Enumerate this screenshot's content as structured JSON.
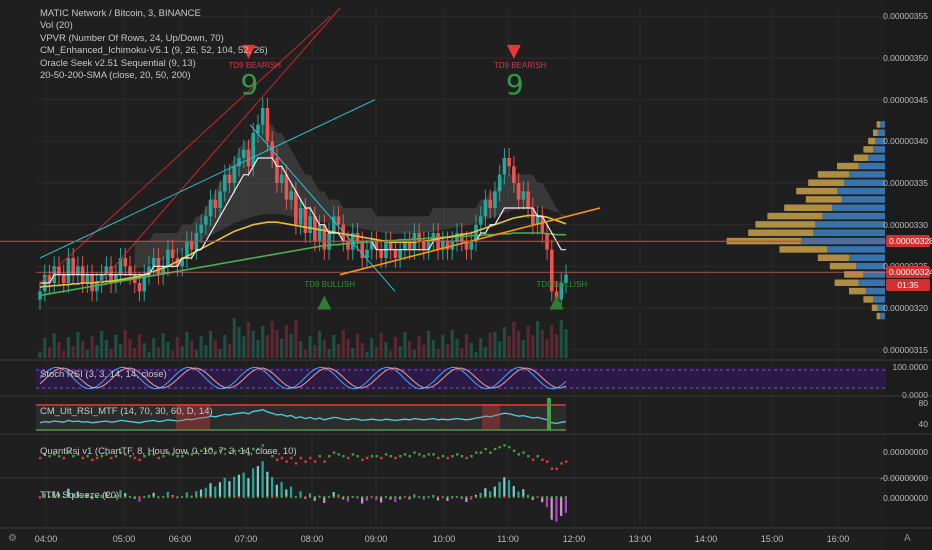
{
  "chart_data": {
    "type": "candlestick",
    "title": "MATIC Network / Bitcoin, 3, BINANCE",
    "indicators": [
      "Vol (20)",
      "VPVR (Number Of Rows, 24, Up/Down, 70)",
      "CM_Enhanced_Ichimoku-V5.1 (9, 26, 52, 104, 52, 26)",
      "Oracle Seek v2.51 Sequential (9, 13)",
      "20-50-200-SMA (close, 20, 50, 200)"
    ],
    "y_ticks": [
      "0.00000355",
      "0.00000350",
      "0.00000345",
      "0.00000340",
      "0.00000335",
      "0.00000330",
      "0.00000325",
      "0.00000320",
      "0.00000315"
    ],
    "y_tick_values": [
      3.55e-06,
      3.5e-06,
      3.45e-06,
      3.4e-06,
      3.35e-06,
      3.3e-06,
      3.25e-06,
      3.2e-06,
      3.15e-06
    ],
    "ylim": [
      3.14e-06,
      3.56e-06
    ],
    "x_ticks": [
      "04:00",
      "05:00",
      "06:00",
      "07:00",
      "08:00",
      "09:00",
      "10:00",
      "11:00",
      "12:00",
      "13:00",
      "14:00",
      "15:00",
      "16:00"
    ],
    "price_tags": [
      {
        "label": "0.00000328",
        "value": 3.28e-06,
        "color": "#d32f2f"
      },
      {
        "label": "0.00000324",
        "value": 3.243e-06,
        "color": "#d32f2f"
      },
      {
        "label": "01:35",
        "value": 3.228e-06,
        "color": "#d32f2f"
      }
    ],
    "close_series": [
      3.22,
      3.24,
      3.23,
      3.25,
      3.24,
      3.23,
      3.26,
      3.24,
      3.25,
      3.23,
      3.24,
      3.22,
      3.23,
      3.24,
      3.25,
      3.23,
      3.24,
      3.26,
      3.25,
      3.24,
      3.23,
      3.22,
      3.24,
      3.25,
      3.26,
      3.24,
      3.25,
      3.27,
      3.26,
      3.25,
      3.26,
      3.28,
      3.27,
      3.29,
      3.3,
      3.31,
      3.33,
      3.32,
      3.34,
      3.36,
      3.35,
      3.37,
      3.38,
      3.39,
      3.37,
      3.41,
      3.42,
      3.44,
      3.4,
      3.38,
      3.35,
      3.36,
      3.33,
      3.34,
      3.3,
      3.32,
      3.29,
      3.31,
      3.28,
      3.3,
      3.27,
      3.29,
      3.31,
      3.3,
      3.28,
      3.27,
      3.29,
      3.28,
      3.26,
      3.27,
      3.28,
      3.27,
      3.26,
      3.28,
      3.27,
      3.26,
      3.27,
      3.28,
      3.27,
      3.29,
      3.28,
      3.27,
      3.28,
      3.29,
      3.27,
      3.28,
      3.27,
      3.28,
      3.29,
      3.28,
      3.27,
      3.28,
      3.3,
      3.31,
      3.33,
      3.32,
      3.34,
      3.36,
      3.38,
      3.37,
      3.35,
      3.33,
      3.34,
      3.32,
      3.3,
      3.31,
      3.29,
      3.27,
      3.22,
      3.21,
      3.23,
      3.24
    ],
    "sma20": [
      3.23,
      3.23,
      3.23,
      3.24,
      3.24,
      3.24,
      3.24,
      3.24,
      3.24,
      3.24,
      3.24,
      3.24,
      3.24,
      3.24,
      3.24,
      3.24,
      3.24,
      3.24,
      3.24,
      3.24,
      3.24,
      3.24,
      3.24,
      3.24,
      3.25,
      3.25,
      3.25,
      3.25,
      3.25,
      3.25,
      3.26,
      3.26,
      3.26,
      3.27,
      3.27,
      3.28,
      3.29,
      3.3,
      3.31,
      3.32,
      3.33,
      3.34,
      3.35,
      3.36,
      3.36,
      3.37,
      3.38,
      3.38,
      3.38,
      3.38,
      3.37,
      3.37,
      3.36,
      3.35,
      3.34,
      3.33,
      3.32,
      3.32,
      3.31,
      3.3,
      3.3,
      3.29,
      3.29,
      3.29,
      3.28,
      3.28,
      3.28,
      3.28,
      3.28,
      3.28,
      3.28,
      3.27,
      3.27,
      3.27,
      3.27,
      3.27,
      3.27,
      3.27,
      3.27,
      3.27,
      3.27,
      3.27,
      3.27,
      3.28,
      3.28,
      3.28,
      3.28,
      3.28,
      3.28,
      3.28,
      3.28,
      3.28,
      3.28,
      3.29,
      3.29,
      3.3,
      3.3,
      3.31,
      3.32,
      3.32,
      3.32,
      3.32,
      3.32,
      3.32,
      3.32,
      3.31,
      3.31,
      3.3,
      3.29,
      3.28,
      3.27,
      3.27
    ],
    "sma50": [
      3.225,
      3.226,
      3.226,
      3.227,
      3.227,
      3.228,
      3.228,
      3.229,
      3.229,
      3.23,
      3.23,
      3.23,
      3.231,
      3.231,
      3.232,
      3.232,
      3.233,
      3.234,
      3.235,
      3.236,
      3.237,
      3.238,
      3.24,
      3.242,
      3.244,
      3.246,
      3.248,
      3.25,
      3.253,
      3.256,
      3.259,
      3.262,
      3.265,
      3.268,
      3.271,
      3.274,
      3.277,
      3.28,
      3.283,
      3.286,
      3.289,
      3.292,
      3.294,
      3.296,
      3.298,
      3.3,
      3.301,
      3.302,
      3.303,
      3.303,
      3.303,
      3.302,
      3.301,
      3.3,
      3.299,
      3.298,
      3.297,
      3.296,
      3.295,
      3.294,
      3.293,
      3.292,
      3.291,
      3.29,
      3.289,
      3.288,
      3.287,
      3.286,
      3.285,
      3.284,
      3.283,
      3.282,
      3.281,
      3.28,
      3.279,
      3.279,
      3.279,
      3.279,
      3.279,
      3.279,
      3.28,
      3.28,
      3.281,
      3.282,
      3.283,
      3.284,
      3.285,
      3.286,
      3.287,
      3.288,
      3.289,
      3.29,
      3.292,
      3.294,
      3.296,
      3.298,
      3.3,
      3.302,
      3.304,
      3.306,
      3.308,
      3.309,
      3.31,
      3.311,
      3.311,
      3.311,
      3.31,
      3.309,
      3.307,
      3.305,
      3.303,
      3.301
    ],
    "sma200": [
      3.215,
      3.216,
      3.217,
      3.218,
      3.219,
      3.22,
      3.221,
      3.222,
      3.223,
      3.224,
      3.225,
      3.226,
      3.227,
      3.228,
      3.229,
      3.23,
      3.231,
      3.232,
      3.233,
      3.234,
      3.235,
      3.236,
      3.237,
      3.238,
      3.239,
      3.24,
      3.241,
      3.242,
      3.243,
      3.244,
      3.245,
      3.246,
      3.247,
      3.248,
      3.249,
      3.25,
      3.251,
      3.252,
      3.253,
      3.254,
      3.255,
      3.256,
      3.257,
      3.258,
      3.259,
      3.26,
      3.261,
      3.262,
      3.263,
      3.264,
      3.265,
      3.266,
      3.267,
      3.268,
      3.269,
      3.27,
      3.271,
      3.272,
      3.273,
      3.274,
      3.275,
      3.275,
      3.276,
      3.276,
      3.277,
      3.277,
      3.278,
      3.278,
      3.279,
      3.279,
      3.28,
      3.28,
      3.28,
      3.281,
      3.281,
      3.281,
      3.282,
      3.282,
      3.282,
      3.283,
      3.283,
      3.283,
      3.284,
      3.284,
      3.284,
      3.285,
      3.285,
      3.285,
      3.286,
      3.286,
      3.286,
      3.287,
      3.287,
      3.287,
      3.288,
      3.288,
      3.288,
      3.289,
      3.289,
      3.289,
      3.29,
      3.29,
      3.29,
      3.29,
      3.29,
      3.29,
      3.29,
      3.289,
      3.289,
      3.288,
      3.288,
      3.288
    ],
    "volume_profile": [
      {
        "price": 3.42,
        "up": 4,
        "down": 3
      },
      {
        "price": 3.41,
        "up": 6,
        "down": 4
      },
      {
        "price": 3.4,
        "up": 8,
        "down": 6
      },
      {
        "price": 3.39,
        "up": 10,
        "down": 8
      },
      {
        "price": 3.38,
        "up": 14,
        "down": 12
      },
      {
        "price": 3.37,
        "up": 22,
        "down": 18
      },
      {
        "price": 3.36,
        "up": 30,
        "down": 26
      },
      {
        "price": 3.35,
        "up": 34,
        "down": 30
      },
      {
        "price": 3.34,
        "up": 40,
        "down": 34
      },
      {
        "price": 3.33,
        "up": 36,
        "down": 30
      },
      {
        "price": 3.32,
        "up": 44,
        "down": 40
      },
      {
        "price": 3.31,
        "up": 52,
        "down": 46
      },
      {
        "price": 3.3,
        "up": 58,
        "down": 50
      },
      {
        "price": 3.29,
        "up": 60,
        "down": 54
      },
      {
        "price": 3.28,
        "up": 70,
        "down": 62
      },
      {
        "price": 3.27,
        "up": 48,
        "down": 40
      },
      {
        "price": 3.26,
        "up": 30,
        "down": 26
      },
      {
        "price": 3.25,
        "up": 24,
        "down": 22
      },
      {
        "price": 3.24,
        "up": 18,
        "down": 16
      },
      {
        "price": 3.23,
        "up": 22,
        "down": 20
      },
      {
        "price": 3.22,
        "up": 16,
        "down": 14
      },
      {
        "price": 3.21,
        "up": 10,
        "down": 8
      },
      {
        "price": 3.2,
        "up": 6,
        "down": 5
      },
      {
        "price": 3.19,
        "up": 4,
        "down": 3
      }
    ],
    "markers": [
      {
        "label": "TD9 BEARISH",
        "type": "bearish",
        "index": 44,
        "price": 3.505
      },
      {
        "label": "TD9 BEARISH",
        "type": "bearish",
        "index": 100,
        "price": 3.505
      },
      {
        "label": "TD9 BULLISH",
        "type": "bullish",
        "index": 60,
        "price": 3.215
      },
      {
        "label": "TD9 BULLISH",
        "type": "bullish",
        "index": 109,
        "price": 3.215
      }
    ],
    "panes": [
      {
        "title": "Stoch RSI (3, 3, 14, 14, close)",
        "y_ticks": [
          "100.0000",
          "0.0000"
        ]
      },
      {
        "title": "CM_Ult_RSI_MTF (14, 70, 30, 60, D, 14)",
        "y_ticks": [
          "80",
          "40"
        ]
      },
      {
        "title": "QuantRsi v1 (ChartTF, 8, Hour, low, 0, 10, 7, 3, 14, close, 10)",
        "y_ticks": [
          "0.00000000",
          "-0.00000000"
        ]
      },
      {
        "title": "TTM Squeeze (20)",
        "y_ticks": [
          "0.00000000"
        ]
      }
    ],
    "grid": true,
    "legend": "top-left"
  },
  "icons": {
    "settings": "gear-icon",
    "autoscale": "auto-icon"
  }
}
